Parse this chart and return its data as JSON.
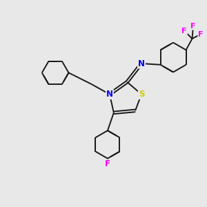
{
  "bg_color": "#e8e8e8",
  "atom_colors": {
    "N": "#0000ee",
    "S": "#cccc00",
    "F": "#ff00ff",
    "C": "#1a1a1a"
  },
  "bond_lw": 1.4,
  "dbo": 0.06
}
